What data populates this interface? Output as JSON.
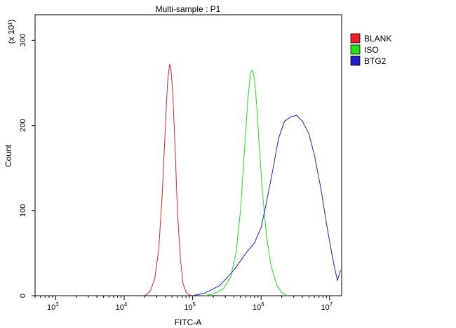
{
  "chart_data": {
    "type": "line",
    "title": "Multi-sample : P1",
    "xlabel": "FITC-A",
    "ylabel": "Count",
    "y_multiplier_label": "(x 10¹)",
    "x_scale": "log",
    "xlim": [
      500,
      15000000
    ],
    "ylim": [
      0,
      330
    ],
    "x_ticks": [
      {
        "base": "10",
        "exp": "3",
        "value": 1000
      },
      {
        "base": "10",
        "exp": "4",
        "value": 10000
      },
      {
        "base": "10",
        "exp": "5",
        "value": 100000
      },
      {
        "base": "10",
        "exp": "6",
        "value": 1000000
      },
      {
        "base": "10",
        "exp": "7",
        "value": 10000000
      }
    ],
    "y_ticks": [
      {
        "label": "0",
        "value": 0
      },
      {
        "label": "100",
        "value": 100
      },
      {
        "label": "200",
        "value": 200
      },
      {
        "label": "300",
        "value": 300
      }
    ],
    "legend_position": "top-right",
    "series": [
      {
        "name": "BLANK",
        "color": "#e8202a",
        "x": [
          20000,
          24000,
          28000,
          32000,
          36000,
          40000,
          43000,
          46000,
          48000,
          51000,
          55000,
          60000,
          66000,
          72000,
          80000,
          90000,
          100000
        ],
        "y": [
          0,
          5,
          20,
          55,
          120,
          200,
          250,
          272,
          268,
          240,
          180,
          100,
          45,
          15,
          4,
          1,
          0
        ]
      },
      {
        "name": "ISO",
        "color": "#22e01a",
        "x": [
          150000,
          200000,
          280000,
          360000,
          430000,
          500000,
          570000,
          640000,
          700000,
          750000,
          800000,
          870000,
          950000,
          1050000,
          1200000,
          1400000,
          1700000,
          2000000,
          2400000
        ],
        "y": [
          0,
          2,
          8,
          22,
          50,
          100,
          170,
          230,
          262,
          265,
          255,
          220,
          170,
          120,
          70,
          35,
          12,
          4,
          0
        ]
      },
      {
        "name": "BTG2",
        "color": "#1a22c8",
        "x": [
          100000,
          150000,
          250000,
          400000,
          600000,
          800000,
          1000000,
          1200000,
          1500000,
          1800000,
          2200000,
          2700000,
          3300000,
          4000000,
          5000000,
          6000000,
          7500000,
          9000000,
          11000000,
          13000000,
          14500000
        ],
        "y": [
          0,
          3,
          12,
          30,
          50,
          62,
          80,
          110,
          150,
          185,
          205,
          210,
          212,
          205,
          190,
          165,
          125,
          85,
          45,
          18,
          30
        ]
      }
    ]
  }
}
